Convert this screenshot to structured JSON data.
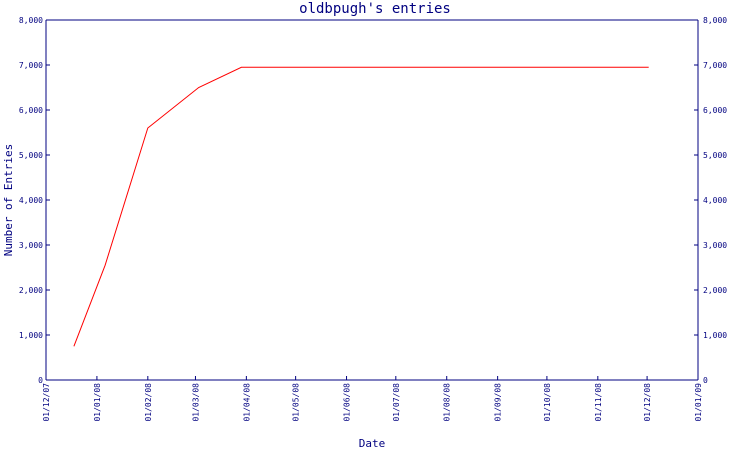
{
  "chart_data": {
    "type": "line",
    "title": "oldbpugh's entries",
    "xlabel": "Date",
    "ylabel": "Number of Entries",
    "x_ticks": [
      "01/12/07",
      "01/01/08",
      "01/02/08",
      "01/03/08",
      "01/04/08",
      "01/05/08",
      "01/06/08",
      "01/07/08",
      "01/08/08",
      "01/09/08",
      "01/10/08",
      "01/11/08",
      "01/12/08",
      "01/01/09"
    ],
    "y_ticks": [
      "0",
      "1,000",
      "2,000",
      "3,000",
      "4,000",
      "5,000",
      "6,000",
      "7,000",
      "8,000"
    ],
    "ylim": [
      0,
      8000
    ],
    "xlim": [
      "2007-12-01",
      "2009-01-01"
    ],
    "grid": false,
    "series": [
      {
        "color": "#ff0000",
        "points": [
          {
            "x": "2007-12-18",
            "y": 750
          },
          {
            "x": "2008-01-06",
            "y": 2550
          },
          {
            "x": "2008-02-01",
            "y": 5600
          },
          {
            "x": "2008-03-03",
            "y": 6500
          },
          {
            "x": "2008-03-29",
            "y": 6950
          },
          {
            "x": "2008-12-02",
            "y": 6950
          }
        ]
      }
    ]
  }
}
